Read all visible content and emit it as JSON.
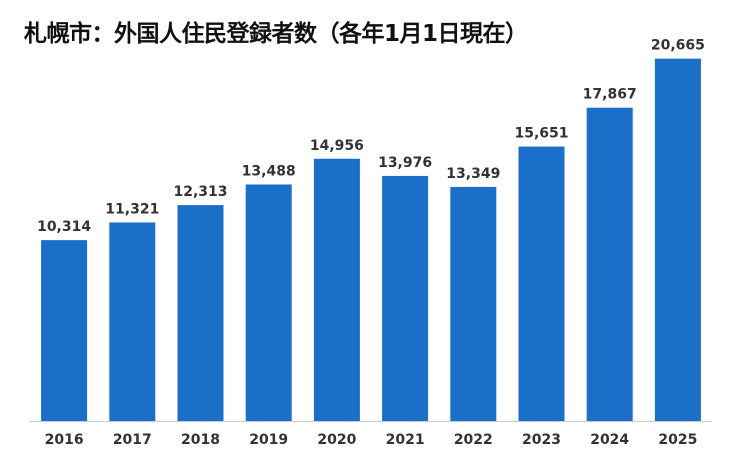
{
  "chart_data": {
    "type": "bar",
    "title": "札幌市：外国人住民登録者数（各年1月1日現在）",
    "categories": [
      "2016",
      "2017",
      "2018",
      "2019",
      "2020",
      "2021",
      "2022",
      "2023",
      "2024",
      "2025"
    ],
    "values": [
      10314,
      11321,
      12313,
      13488,
      14956,
      13976,
      13349,
      15651,
      17867,
      20665
    ],
    "data_labels": [
      "10,314",
      "11,321",
      "12,313",
      "13,488",
      "14,956",
      "13,976",
      "13,349",
      "15,651",
      "17,867",
      "20,665"
    ],
    "xlabel": "",
    "ylabel": "",
    "ylim": [
      0,
      21500
    ],
    "grid": false,
    "legend": "none",
    "bar_color": "#1a6fc9",
    "axis_color": "#cccccc",
    "label_color": "#333333"
  }
}
